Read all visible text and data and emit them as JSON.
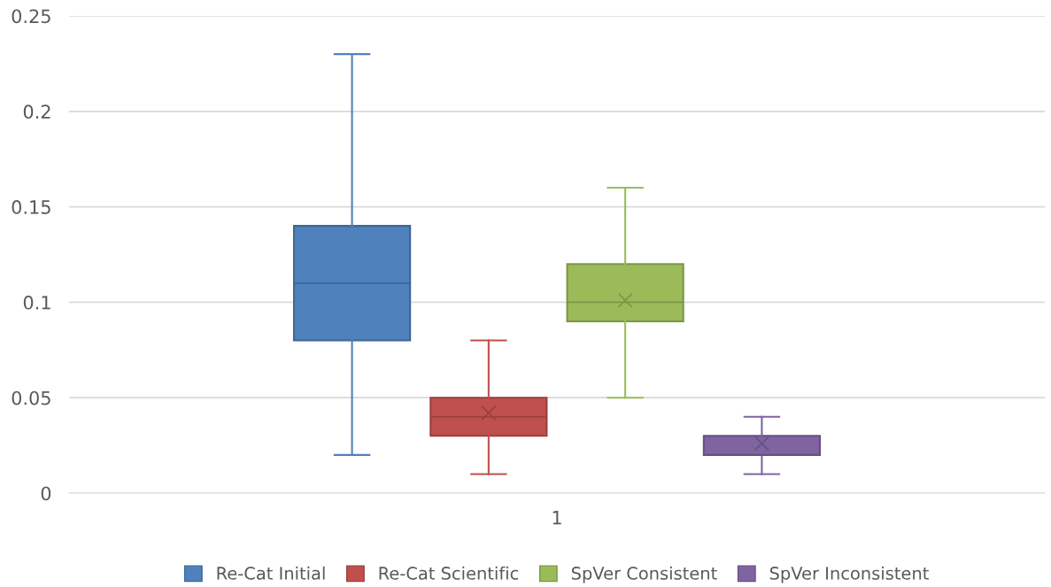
{
  "chart_data": {
    "type": "box",
    "categories": [
      "1"
    ],
    "series": [
      {
        "name": "Re-Cat Initial",
        "color": "#4f81bd",
        "boxes": [
          {
            "low": 0.02,
            "q1": 0.08,
            "median": 0.11,
            "q3": 0.14,
            "high": 0.23
          }
        ]
      },
      {
        "name": "Re-Cat Scientific",
        "color": "#c0504d",
        "boxes": [
          {
            "low": 0.01,
            "q1": 0.03,
            "median": 0.04,
            "q3": 0.05,
            "high": 0.08,
            "mean": 0.042
          }
        ]
      },
      {
        "name": "SpVer Consistent",
        "color": "#9bbb59",
        "boxes": [
          {
            "low": 0.05,
            "q1": 0.09,
            "median": 0.1,
            "q3": 0.12,
            "high": 0.16,
            "mean": 0.101
          }
        ]
      },
      {
        "name": "SpVer Inconsistent",
        "color": "#8064a2",
        "boxes": [
          {
            "low": 0.01,
            "q1": 0.02,
            "median": 0.02,
            "q3": 0.03,
            "high": 0.04,
            "mean": 0.026
          }
        ]
      }
    ],
    "ylim": [
      0,
      0.25
    ],
    "yticks": [
      0,
      0.05,
      0.1,
      0.15,
      0.2,
      0.25
    ],
    "grid": "y",
    "legend": "bottom"
  }
}
